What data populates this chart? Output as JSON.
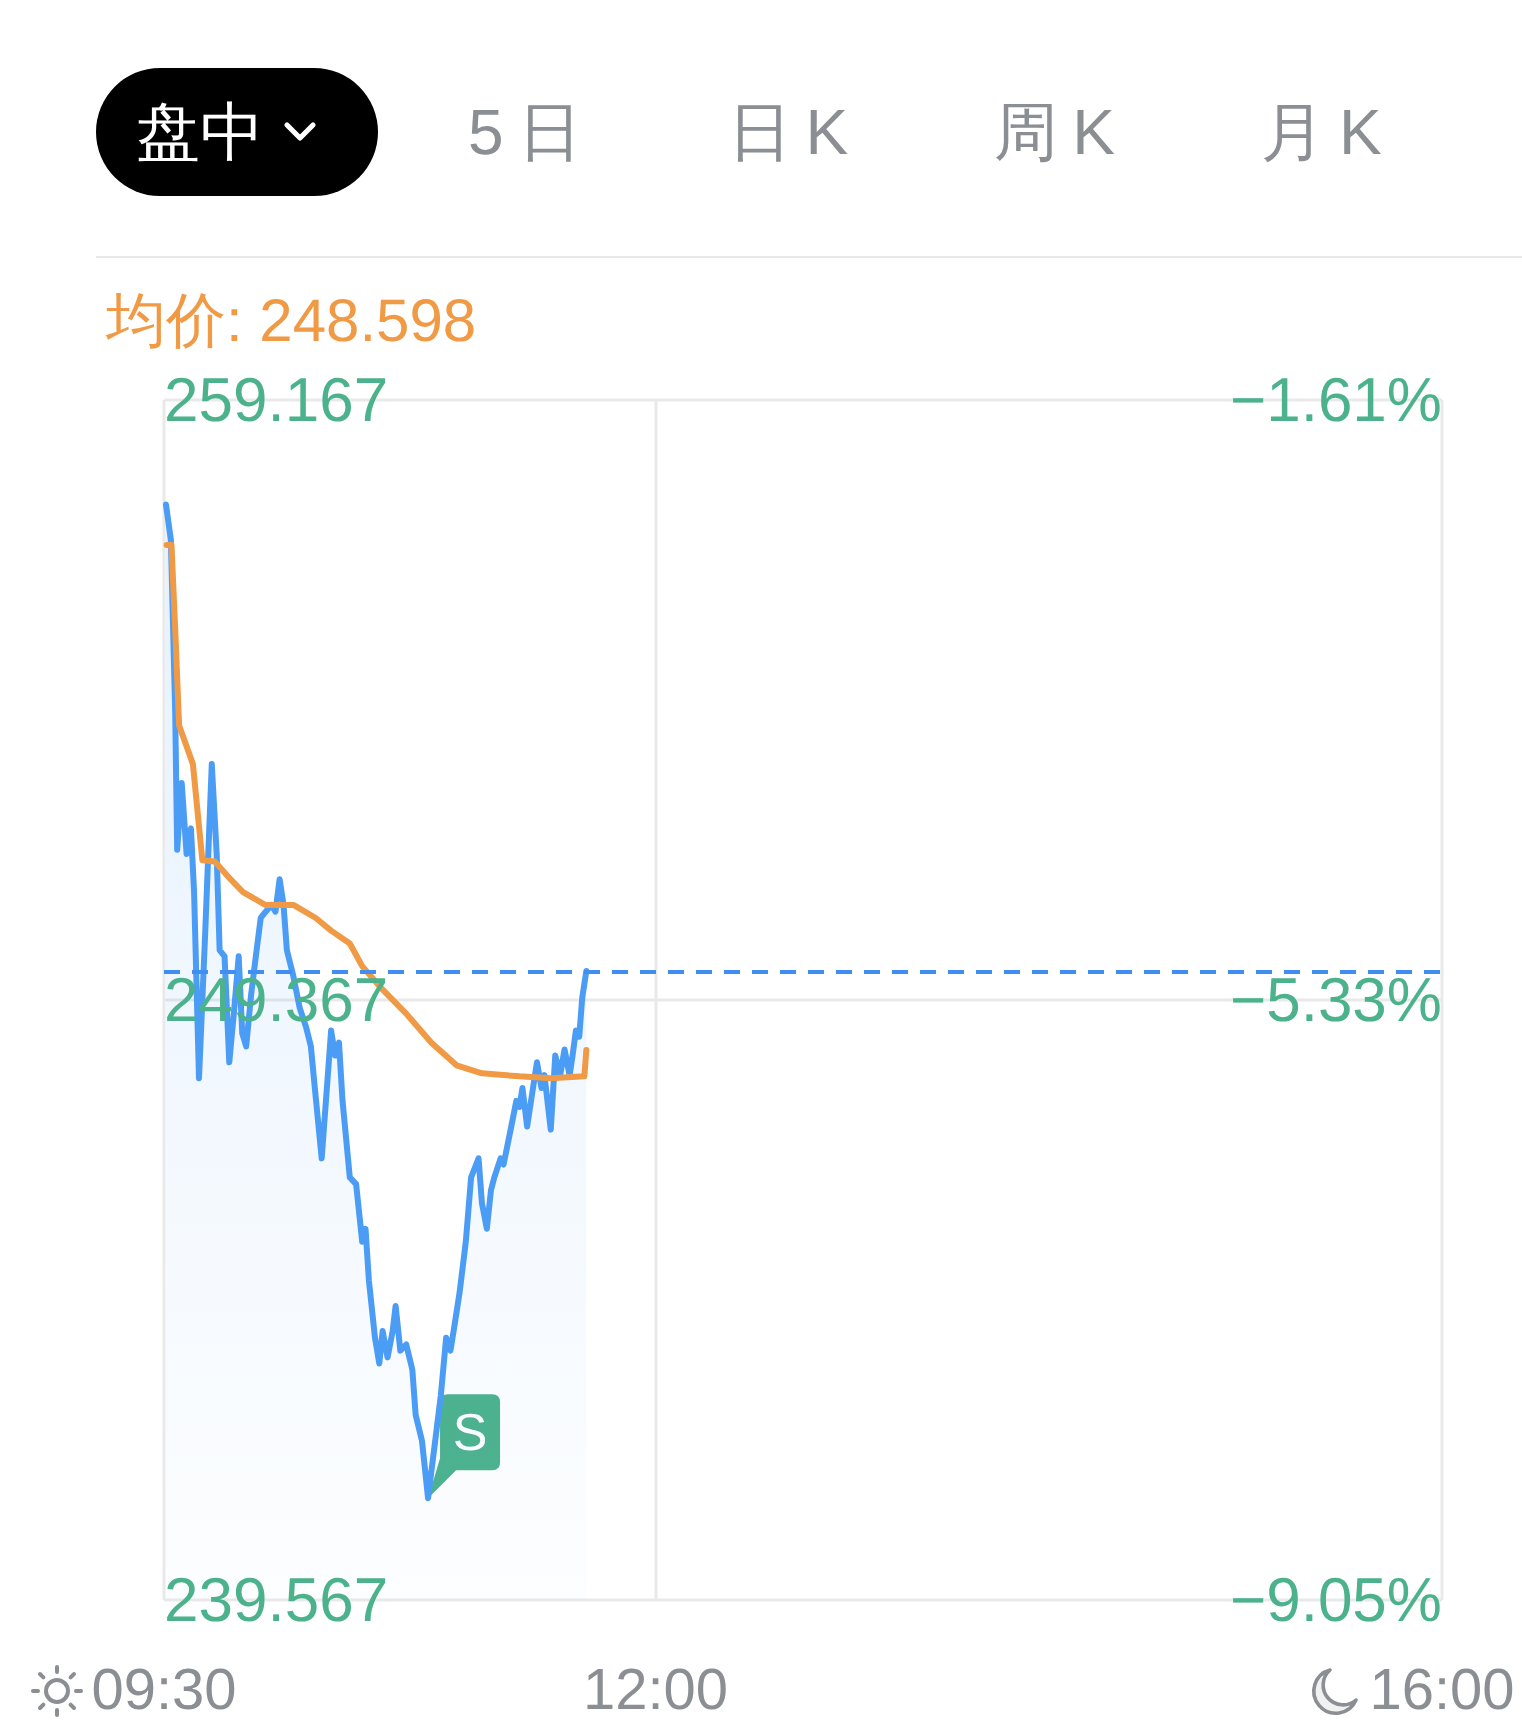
{
  "chart_data": {
    "type": "line",
    "annotations": [
      "盘中",
      "5日",
      "日K",
      "周K",
      "月K",
      {
        "text": "S",
        "x": 10.843,
        "y": 241.23
      }
    ],
    "series": [
      {
        "type": "area",
        "color": "#4b9cf5",
        "x": [
          9.51,
          9.535,
          9.557,
          9.567,
          9.59,
          9.615,
          9.637,
          9.653,
          9.678,
          9.71,
          9.743,
          9.768,
          9.783,
          9.808,
          9.832,
          9.855,
          9.88,
          9.898,
          9.918,
          9.943,
          9.967,
          9.992,
          10.017,
          10.047,
          10.067,
          10.088,
          10.108,
          10.125,
          10.157,
          10.19,
          10.222,
          10.247,
          10.268,
          10.302,
          10.35,
          10.37,
          10.39,
          10.408,
          10.445,
          10.477,
          10.508,
          10.525,
          10.542,
          10.573,
          10.595,
          10.612,
          10.637,
          10.663,
          10.678,
          10.702,
          10.732,
          10.763,
          10.78,
          10.812,
          10.843,
          10.908,
          10.935,
          10.957,
          10.973,
          11.003,
          11.035,
          11.062,
          11.1,
          11.117,
          11.142,
          11.163,
          11.18,
          11.212,
          11.227,
          11.26,
          11.292,
          11.308,
          11.323,
          11.347,
          11.372,
          11.397,
          11.42,
          11.435,
          11.467,
          11.49,
          11.515,
          11.537,
          11.563,
          11.578,
          11.595,
          11.612,
          11.627,
          11.648
        ],
        "values": [
          257.46,
          256.88,
          254.06,
          251.82,
          252.91,
          251.75,
          252.17,
          251.13,
          248.09,
          250.5,
          253.22,
          251.75,
          250.18,
          250.08,
          248.35,
          249.14,
          250.08,
          248.82,
          248.61,
          249.45,
          250.08,
          250.71,
          250.81,
          250.92,
          250.81,
          251.34,
          250.92,
          250.18,
          249.77,
          249.24,
          248.93,
          248.61,
          247.9,
          246.78,
          248.87,
          248.46,
          248.67,
          247.72,
          246.47,
          246.36,
          245.42,
          245.63,
          244.79,
          243.85,
          243.43,
          243.96,
          243.53,
          243.96,
          244.37,
          243.64,
          243.74,
          243.33,
          242.59,
          242.17,
          241.23,
          242.91,
          243.85,
          243.64,
          243.96,
          244.58,
          245.42,
          246.47,
          246.78,
          246.05,
          245.63,
          246.26,
          246.47,
          246.78,
          246.68,
          247.2,
          247.72,
          247.62,
          247.93,
          247.3,
          247.83,
          248.35,
          247.93,
          248.14,
          247.25,
          248.46,
          248.14,
          248.56,
          248.14,
          248.46,
          248.87,
          248.77,
          249.4,
          249.84
        ]
      },
      {
        "name": "均价: 248.598",
        "color": "#f09a45",
        "x": [
          9.513,
          9.538,
          9.557,
          9.577,
          9.647,
          9.695,
          9.758,
          9.838,
          9.902,
          10.015,
          10.158,
          10.27,
          10.35,
          10.445,
          10.508,
          10.605,
          10.733,
          10.86,
          10.988,
          11.117,
          11.308,
          11.467,
          11.638,
          11.648
        ],
        "values": [
          256.8,
          256.8,
          255.42,
          253.85,
          253.22,
          251.65,
          251.63,
          251.34,
          251.13,
          250.92,
          250.92,
          250.71,
          250.5,
          250.29,
          249.92,
          249.56,
          249.14,
          248.67,
          248.3,
          248.17,
          248.12,
          248.09,
          248.12,
          248.55
        ]
      }
    ],
    "xlim": [
      9.5,
      16
    ],
    "xticks": [
      {
        "value": 9.5,
        "label": "09:30"
      },
      {
        "value": 12,
        "label": "12:00"
      },
      {
        "value": 16,
        "label": "16:00"
      }
    ],
    "ylim": [
      239.567,
      259.167
    ],
    "yticks": [
      239.567,
      249.367,
      259.167
    ],
    "y2lim": [
      -9.05,
      -1.61
    ],
    "y2ticks": [
      {
        "value": -9.05,
        "label": "−9.05%"
      },
      {
        "value": -5.33,
        "label": "−5.33%"
      },
      {
        "value": -1.61,
        "label": "−1.61%"
      }
    ],
    "ref_lines": [
      {
        "axis": "y",
        "value": 249.84,
        "color": "#3f8ef0",
        "line_style": "dashed"
      }
    ],
    "grid": true,
    "legend": "top left"
  }
}
